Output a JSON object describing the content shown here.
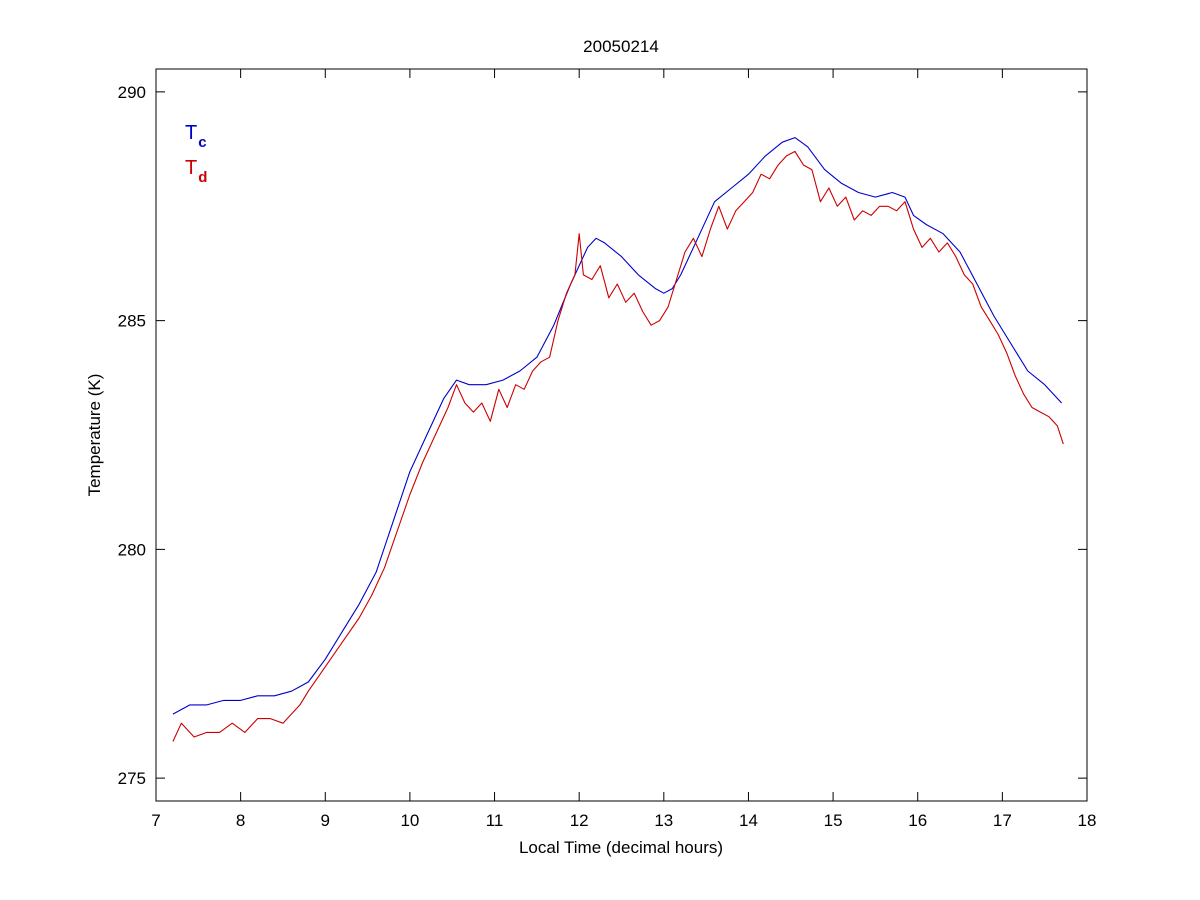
{
  "chart_data": {
    "type": "line",
    "title": "20050214",
    "xlabel": "Local Time (decimal hours)",
    "ylabel": "Temperature (K)",
    "xlim": [
      7,
      18
    ],
    "ylim": [
      274.5,
      290.5
    ],
    "xticks": [
      7,
      8,
      9,
      10,
      11,
      12,
      13,
      14,
      15,
      16,
      17,
      18
    ],
    "yticks": [
      275,
      280,
      285,
      290
    ],
    "grid": false,
    "legend_position": "top-left",
    "series": [
      {
        "label_main": "T",
        "label_sub": "c",
        "color": "#0000cc",
        "x": [
          7.2,
          7.4,
          7.6,
          7.8,
          8.0,
          8.2,
          8.4,
          8.6,
          8.7,
          8.8,
          9.0,
          9.2,
          9.4,
          9.6,
          9.8,
          10.0,
          10.2,
          10.4,
          10.55,
          10.7,
          10.9,
          11.1,
          11.3,
          11.5,
          11.7,
          11.9,
          12.1,
          12.2,
          12.3,
          12.5,
          12.7,
          12.9,
          13.0,
          13.1,
          13.2,
          13.4,
          13.6,
          13.8,
          14.0,
          14.2,
          14.4,
          14.55,
          14.7,
          14.9,
          15.1,
          15.3,
          15.5,
          15.7,
          15.85,
          15.95,
          16.1,
          16.3,
          16.5,
          16.7,
          16.9,
          17.1,
          17.3,
          17.5,
          17.7
        ],
        "values": [
          276.4,
          276.6,
          276.6,
          276.7,
          276.7,
          276.8,
          276.8,
          276.9,
          277.0,
          277.1,
          277.6,
          278.2,
          278.8,
          279.5,
          280.6,
          281.7,
          282.5,
          283.3,
          283.7,
          283.6,
          283.6,
          283.7,
          283.9,
          284.2,
          284.9,
          285.8,
          286.6,
          286.8,
          286.7,
          286.4,
          286.0,
          285.7,
          285.6,
          285.7,
          286.0,
          286.8,
          287.6,
          287.9,
          288.2,
          288.6,
          288.9,
          289.0,
          288.8,
          288.3,
          288.0,
          287.8,
          287.7,
          287.8,
          287.7,
          287.3,
          287.1,
          286.9,
          286.5,
          285.8,
          285.1,
          284.5,
          283.9,
          283.6,
          283.2
        ]
      },
      {
        "label_main": "T",
        "label_sub": "d",
        "color": "#cc0000",
        "x": [
          7.2,
          7.3,
          7.45,
          7.6,
          7.75,
          7.9,
          8.05,
          8.2,
          8.35,
          8.5,
          8.6,
          8.7,
          8.8,
          8.95,
          9.1,
          9.25,
          9.4,
          9.55,
          9.7,
          9.85,
          10.0,
          10.15,
          10.3,
          10.45,
          10.55,
          10.65,
          10.75,
          10.85,
          10.95,
          11.05,
          11.15,
          11.25,
          11.35,
          11.45,
          11.55,
          11.65,
          11.75,
          11.85,
          11.95,
          12.0,
          12.05,
          12.15,
          12.25,
          12.35,
          12.45,
          12.55,
          12.65,
          12.75,
          12.85,
          12.95,
          13.05,
          13.15,
          13.25,
          13.35,
          13.45,
          13.55,
          13.65,
          13.75,
          13.85,
          13.95,
          14.05,
          14.15,
          14.25,
          14.35,
          14.45,
          14.55,
          14.65,
          14.75,
          14.85,
          14.95,
          15.05,
          15.15,
          15.25,
          15.35,
          15.45,
          15.55,
          15.65,
          15.75,
          15.85,
          15.95,
          16.05,
          16.15,
          16.25,
          16.35,
          16.45,
          16.55,
          16.65,
          16.75,
          16.85,
          16.95,
          17.05,
          17.15,
          17.25,
          17.35,
          17.45,
          17.55,
          17.65,
          17.72
        ],
        "values": [
          275.8,
          276.2,
          275.9,
          276.0,
          276.0,
          276.2,
          276.0,
          276.3,
          276.3,
          276.2,
          276.4,
          276.6,
          276.9,
          277.3,
          277.7,
          278.1,
          278.5,
          279.0,
          279.6,
          280.4,
          281.2,
          281.9,
          282.5,
          283.1,
          283.6,
          283.2,
          283.0,
          283.2,
          282.8,
          283.5,
          283.1,
          283.6,
          283.5,
          283.9,
          284.1,
          284.2,
          285.0,
          285.6,
          286.0,
          286.9,
          286.0,
          285.9,
          286.2,
          285.5,
          285.8,
          285.4,
          285.6,
          285.2,
          284.9,
          285.0,
          285.3,
          285.9,
          286.5,
          286.8,
          286.4,
          287.0,
          287.5,
          287.0,
          287.4,
          287.6,
          287.8,
          288.2,
          288.1,
          288.4,
          288.6,
          288.7,
          288.4,
          288.3,
          287.6,
          287.9,
          287.5,
          287.7,
          287.2,
          287.4,
          287.3,
          287.5,
          287.5,
          287.4,
          287.6,
          287.0,
          286.6,
          286.8,
          286.5,
          286.7,
          286.4,
          286.0,
          285.8,
          285.3,
          285.0,
          284.7,
          284.3,
          283.8,
          283.4,
          283.1,
          283.0,
          282.9,
          282.7,
          282.3
        ]
      }
    ]
  }
}
